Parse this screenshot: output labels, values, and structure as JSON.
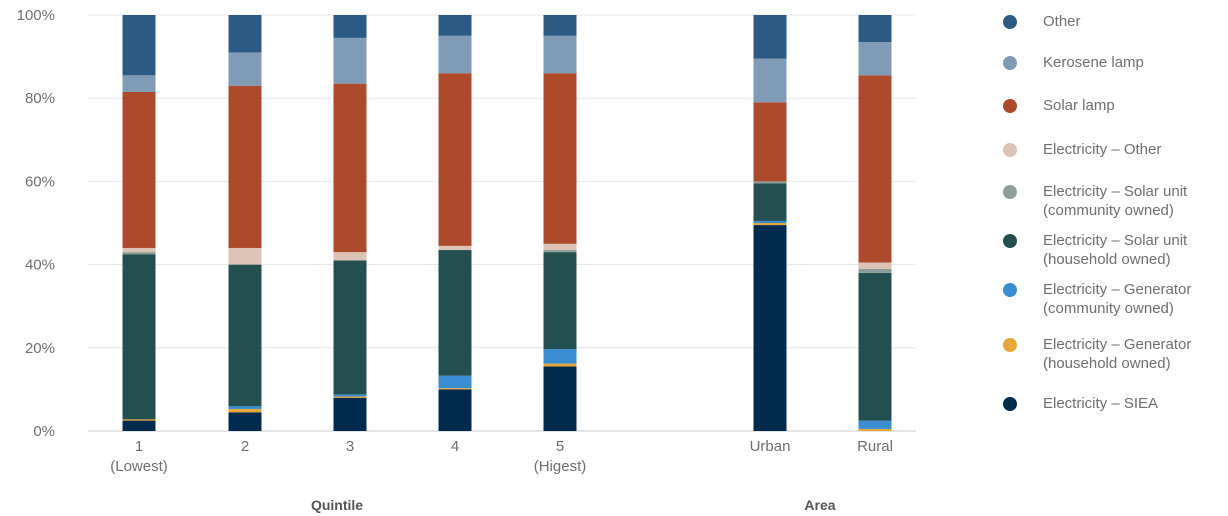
{
  "chart_data": {
    "type": "bar",
    "stacked": true,
    "ylim": [
      0,
      100
    ],
    "yticks": [
      "0%",
      "20%",
      "40%",
      "60%",
      "80%",
      "100%"
    ],
    "categories": [
      {
        "label": "1",
        "sublabel": "(Lowest)",
        "group": "Quintile"
      },
      {
        "label": "2",
        "sublabel": "",
        "group": "Quintile"
      },
      {
        "label": "3",
        "sublabel": "",
        "group": "Quintile"
      },
      {
        "label": "4",
        "sublabel": "",
        "group": "Quintile"
      },
      {
        "label": "5",
        "sublabel": "(Higest)",
        "group": "Quintile"
      },
      {
        "label": "Urban",
        "sublabel": "",
        "group": "Area"
      },
      {
        "label": "Rural",
        "sublabel": "",
        "group": "Area"
      }
    ],
    "groups": [
      "Quintile",
      "Area"
    ],
    "series": [
      {
        "name": "Electricity – SIEA",
        "color": "#002b4f",
        "values": [
          2.5,
          4.5,
          8,
          10,
          15.5,
          49.5,
          0
        ]
      },
      {
        "name": "Electricity – Generator (household owned)",
        "color": "#e8a838",
        "values": [
          0.3,
          0.8,
          0.3,
          0.3,
          0.7,
          0.5,
          0.5
        ]
      },
      {
        "name": "Electricity – Generator (community owned)",
        "color": "#3a8dd0",
        "values": [
          0,
          0.7,
          0.5,
          3,
          3.5,
          0.5,
          2
        ]
      },
      {
        "name": "Electricity – Solar unit (household owned)",
        "color": "#234f50",
        "values": [
          39.7,
          34,
          32.2,
          30.2,
          23.3,
          9,
          35.5
        ]
      },
      {
        "name": "Electricity – Solar unit (community owned)",
        "color": "#8d9e98",
        "values": [
          0.5,
          0,
          0,
          0,
          0.5,
          0.5,
          1
        ]
      },
      {
        "name": "Electricity – Other",
        "color": "#dcc3b6",
        "values": [
          1,
          4,
          2,
          1,
          1.5,
          0,
          1.5
        ]
      },
      {
        "name": "Solar lamp",
        "color": "#ae4a2c",
        "values": [
          37.5,
          39,
          40.5,
          41.5,
          41,
          19,
          45
        ]
      },
      {
        "name": "Kerosene lamp",
        "color": "#7f9bb5",
        "values": [
          4,
          8,
          11,
          9,
          9,
          10.5,
          8
        ]
      },
      {
        "name": "Other",
        "color": "#2b5b84",
        "values": [
          14.5,
          9,
          5.5,
          5,
          5,
          10.5,
          6.5
        ]
      }
    ]
  },
  "legend": [
    {
      "lines": [
        "Other"
      ],
      "color": "#2b5b84"
    },
    {
      "lines": [
        "Kerosene lamp"
      ],
      "color": "#7f9bb5"
    },
    {
      "lines": [
        "Solar lamp"
      ],
      "color": "#ae4a2c"
    },
    {
      "lines": [
        "Electricity – Other"
      ],
      "color": "#dcc3b6"
    },
    {
      "lines": [
        "Electricity – Solar unit",
        "(community owned)"
      ],
      "color": "#8d9e98"
    },
    {
      "lines": [
        "Electricity – Solar unit",
        "(household owned)"
      ],
      "color": "#234f50"
    },
    {
      "lines": [
        "Electricity – Generator",
        "(community owned)"
      ],
      "color": "#3a8dd0"
    },
    {
      "lines": [
        "Electricity – Generator",
        "(household owned)"
      ],
      "color": "#e8a838"
    },
    {
      "lines": [
        "Electricity – SIEA"
      ],
      "color": "#002b4f"
    }
  ]
}
